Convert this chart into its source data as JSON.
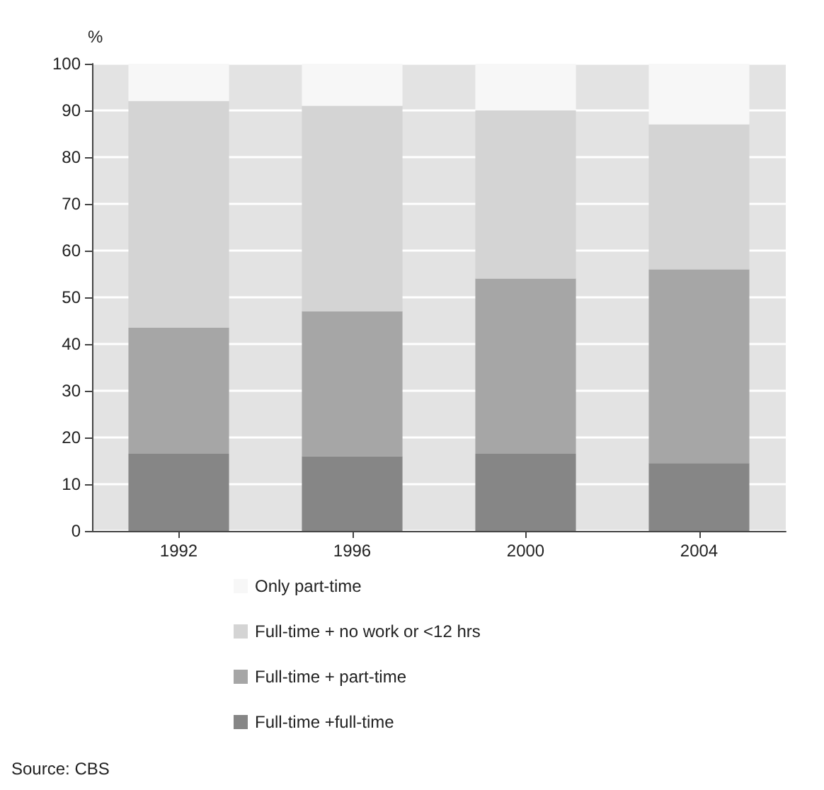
{
  "chart_data": {
    "type": "bar",
    "stacked": true,
    "ylabel": "%",
    "categories": [
      "1992",
      "1996",
      "2000",
      "2004"
    ],
    "series": [
      {
        "name": "Full-time +full-time",
        "color": "#868686",
        "values": [
          16.5,
          16,
          16.5,
          14.5
        ]
      },
      {
        "name": "Full-time + part-time",
        "color": "#a6a6a6",
        "values": [
          27,
          31,
          37.5,
          41.5
        ]
      },
      {
        "name": "Full-time + no work or <12 hrs",
        "color": "#d4d4d4",
        "values": [
          48.5,
          44,
          36,
          31
        ]
      },
      {
        "name": "Only part-time",
        "color": "#f7f7f7",
        "values": [
          8,
          9,
          10,
          13
        ]
      }
    ],
    "ylim": [
      0,
      100
    ],
    "yticks": [
      0,
      10,
      20,
      30,
      40,
      50,
      60,
      70,
      80,
      90,
      100
    ],
    "grid": "y",
    "legend": "bottom",
    "annotations": [
      "Source: CBS"
    ]
  }
}
